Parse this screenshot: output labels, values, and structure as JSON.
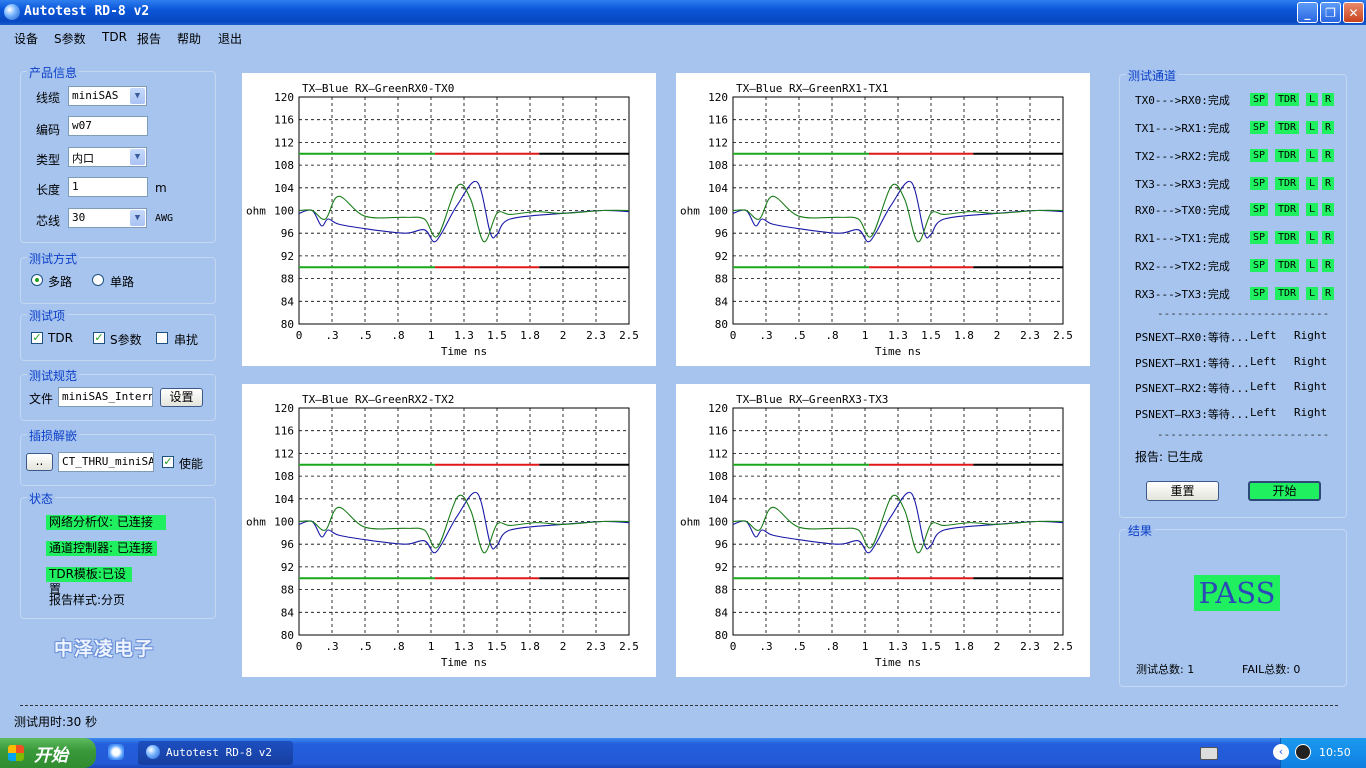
{
  "window": {
    "title": "Autotest RD-8 v2"
  },
  "menu": [
    "设备",
    "S参数",
    "TDR",
    "报告",
    "帮助",
    "退出"
  ],
  "product": {
    "group": "产品信息",
    "cable_label": "线缆",
    "cable_value": "miniSAS",
    "code_label": "编码",
    "code_value": "w07",
    "type_label": "类型",
    "type_value": "内口",
    "length_label": "长度",
    "length_value": "1",
    "length_unit": "m",
    "core_label": "芯线",
    "core_value": "30",
    "core_unit": "AWG"
  },
  "mode": {
    "group": "测试方式",
    "multi": "多路",
    "single": "单路"
  },
  "items": {
    "group": "测试项",
    "tdr": "TDR",
    "sparam": "S参数",
    "crosstalk": "串扰"
  },
  "spec": {
    "group": "测试规范",
    "file_label": "文件",
    "file_value": "miniSAS_Interne",
    "setup_label": "设置"
  },
  "deembed": {
    "group": "插损解嵌",
    "browse_label": "..",
    "file_value": "CT_THRU_miniSAS",
    "enable_label": "使能"
  },
  "status": {
    "group": "状态",
    "vna": "网络分析仪: 已连接",
    "controller": "通道控制器: 已连接",
    "tdr_template": "TDR模板:已设置",
    "report_style": "报告样式:分页"
  },
  "logo": "中泽凌电子",
  "footer": {
    "elapsed": "测试用时:30 秒"
  },
  "plot_common": {
    "y_ticks": [
      "120",
      "116",
      "112",
      "108",
      "104",
      "100",
      "96",
      "92",
      "88",
      "84",
      "80"
    ],
    "x_ticks": [
      "0",
      ".3",
      ".5",
      ".8",
      "1",
      "1.3",
      "1.5",
      "1.8",
      "2",
      "2.3",
      "2.5"
    ],
    "ylabel": "ohm",
    "xlabel": "Time ns"
  },
  "chart_data": [
    {
      "type": "line",
      "title": "TX—Blue  RX—GreenRX0-TX0",
      "xlabel": "Time ns",
      "ylabel": "ohm",
      "xlim": [
        0,
        2.5
      ],
      "ylim": [
        80,
        120
      ],
      "limits": {
        "upper": 110,
        "lower": 90
      },
      "series": [
        {
          "name": "TX",
          "color": "#1a1aa8",
          "x": [
            0,
            0.1,
            0.17,
            0.22,
            0.3,
            0.5,
            0.8,
            0.95,
            1.02,
            1.08,
            1.2,
            1.35,
            1.45,
            1.5,
            1.6,
            2.0,
            2.3,
            2.5
          ],
          "y": [
            99.5,
            100,
            97.3,
            98.5,
            97.6,
            96.8,
            96,
            96.6,
            94.5,
            96,
            101,
            105,
            96,
            95.8,
            98.5,
            99.5,
            100,
            99.8
          ]
        },
        {
          "name": "RX",
          "color": "#1a7d1a",
          "x": [
            0,
            0.1,
            0.2,
            0.3,
            0.5,
            0.8,
            0.95,
            1.05,
            1.2,
            1.3,
            1.4,
            1.5,
            1.6,
            1.8,
            2.0,
            2.3,
            2.5
          ],
          "y": [
            100,
            100,
            98.5,
            102.5,
            99,
            98.8,
            98.5,
            95.5,
            104.3,
            102,
            94.5,
            99.5,
            99.3,
            99.8,
            99.5,
            100,
            100
          ]
        }
      ]
    },
    {
      "type": "line",
      "title": "TX—Blue  RX—GreenRX1-TX1",
      "xlabel": "Time ns",
      "ylabel": "ohm",
      "xlim": [
        0,
        2.5
      ],
      "ylim": [
        80,
        120
      ],
      "limits": {
        "upper": 110,
        "lower": 90
      },
      "series": [
        {
          "name": "TX",
          "color": "#1a1aa8",
          "x": [
            0,
            0.1,
            0.17,
            0.22,
            0.3,
            0.5,
            0.8,
            0.95,
            1.02,
            1.08,
            1.2,
            1.35,
            1.45,
            1.5,
            1.6,
            2.0,
            2.3,
            2.5
          ],
          "y": [
            99.5,
            100,
            97.3,
            98.5,
            97.6,
            96.8,
            96,
            96.6,
            94.5,
            96,
            101,
            105,
            96,
            95.8,
            98.5,
            99.5,
            100,
            99.8
          ]
        },
        {
          "name": "RX",
          "color": "#1a7d1a",
          "x": [
            0,
            0.1,
            0.2,
            0.3,
            0.5,
            0.8,
            0.95,
            1.05,
            1.2,
            1.3,
            1.4,
            1.5,
            1.6,
            1.8,
            2.0,
            2.3,
            2.5
          ],
          "y": [
            100,
            100,
            98.5,
            102.5,
            99,
            98.8,
            98.5,
            95.5,
            104.3,
            102,
            94.5,
            99.5,
            99.3,
            99.8,
            99.5,
            100,
            100
          ]
        }
      ]
    },
    {
      "type": "line",
      "title": "TX—Blue  RX—GreenRX2-TX2",
      "xlabel": "Time ns",
      "ylabel": "ohm",
      "xlim": [
        0,
        2.5
      ],
      "ylim": [
        80,
        120
      ],
      "limits": {
        "upper": 110,
        "lower": 90
      },
      "series": [
        {
          "name": "TX",
          "color": "#1a1aa8",
          "x": [
            0,
            0.1,
            0.17,
            0.22,
            0.3,
            0.5,
            0.8,
            0.95,
            1.02,
            1.08,
            1.2,
            1.35,
            1.45,
            1.5,
            1.6,
            2.0,
            2.3,
            2.5
          ],
          "y": [
            99.5,
            100,
            97.3,
            98.5,
            97.6,
            96.8,
            96,
            96.6,
            94.5,
            96,
            101,
            105,
            96,
            95.8,
            98.5,
            99.5,
            100,
            99.8
          ]
        },
        {
          "name": "RX",
          "color": "#1a7d1a",
          "x": [
            0,
            0.1,
            0.2,
            0.3,
            0.5,
            0.8,
            0.95,
            1.05,
            1.2,
            1.3,
            1.4,
            1.5,
            1.6,
            1.8,
            2.0,
            2.3,
            2.5
          ],
          "y": [
            100,
            100,
            98.5,
            102.5,
            99,
            98.8,
            98.5,
            95.5,
            104.3,
            102,
            94.5,
            99.5,
            99.3,
            99.8,
            99.5,
            100,
            100
          ]
        }
      ]
    },
    {
      "type": "line",
      "title": "TX—Blue  RX—GreenRX3-TX3",
      "xlabel": "Time ns",
      "ylabel": "ohm",
      "xlim": [
        0,
        2.5
      ],
      "ylim": [
        80,
        120
      ],
      "limits": {
        "upper": 110,
        "lower": 90
      },
      "series": [
        {
          "name": "TX",
          "color": "#1a1aa8",
          "x": [
            0,
            0.1,
            0.17,
            0.22,
            0.3,
            0.5,
            0.8,
            0.95,
            1.02,
            1.08,
            1.2,
            1.35,
            1.45,
            1.5,
            1.6,
            2.0,
            2.3,
            2.5
          ],
          "y": [
            99.5,
            100,
            97.3,
            98.5,
            97.6,
            96.8,
            96,
            96.6,
            94.5,
            96,
            101,
            105,
            96,
            95.8,
            98.5,
            99.5,
            100,
            99.8
          ]
        },
        {
          "name": "RX",
          "color": "#1a7d1a",
          "x": [
            0,
            0.1,
            0.2,
            0.3,
            0.5,
            0.8,
            0.95,
            1.05,
            1.2,
            1.3,
            1.4,
            1.5,
            1.6,
            1.8,
            2.0,
            2.3,
            2.5
          ],
          "y": [
            100,
            100,
            98.5,
            102.5,
            99,
            98.8,
            98.5,
            95.5,
            104.3,
            102,
            94.5,
            99.5,
            99.3,
            99.8,
            99.5,
            100,
            100
          ]
        }
      ]
    }
  ],
  "channels": {
    "group": "测试通道",
    "rows": [
      {
        "label": "TX0--->RX0:完成",
        "b": [
          "SP",
          "TDR",
          "L",
          "R"
        ]
      },
      {
        "label": "TX1--->RX1:完成",
        "b": [
          "SP",
          "TDR",
          "L",
          "R"
        ]
      },
      {
        "label": "TX2--->RX2:完成",
        "b": [
          "SP",
          "TDR",
          "L",
          "R"
        ]
      },
      {
        "label": "TX3--->RX3:完成",
        "b": [
          "SP",
          "TDR",
          "L",
          "R"
        ]
      },
      {
        "label": "RX0--->TX0:完成",
        "b": [
          "SP",
          "TDR",
          "L",
          "R"
        ]
      },
      {
        "label": "RX1--->TX1:完成",
        "b": [
          "SP",
          "TDR",
          "L",
          "R"
        ]
      },
      {
        "label": "RX2--->TX2:完成",
        "b": [
          "SP",
          "TDR",
          "L",
          "R"
        ]
      },
      {
        "label": "RX3--->TX3:完成",
        "b": [
          "SP",
          "TDR",
          "L",
          "R"
        ]
      }
    ],
    "divider": "--------------------------",
    "psnext": [
      {
        "label": "PSNEXT—RX0:等待...",
        "left": "Left",
        "right": "Right"
      },
      {
        "label": "PSNEXT—RX1:等待...",
        "left": "Left",
        "right": "Right"
      },
      {
        "label": "PSNEXT—RX2:等待...",
        "left": "Left",
        "right": "Right"
      },
      {
        "label": "PSNEXT—RX3:等待...",
        "left": "Left",
        "right": "Right"
      }
    ],
    "report": "报告: 已生成",
    "reset_label": "重置",
    "start_label": "开始"
  },
  "result": {
    "group": "结果",
    "verdict": "PASS",
    "total": "测试总数: 1",
    "fail": "FAIL总数: 0"
  },
  "taskbar": {
    "start": "开始",
    "task": "Autotest RD-8 v2",
    "clock": "10:50"
  },
  "colors": {
    "accent_green": "#20f060",
    "limit_green": "#1aa81a",
    "limit_red": "#e01818",
    "tx_blue": "#1a1aa8",
    "rx_green": "#1a7d1a"
  }
}
